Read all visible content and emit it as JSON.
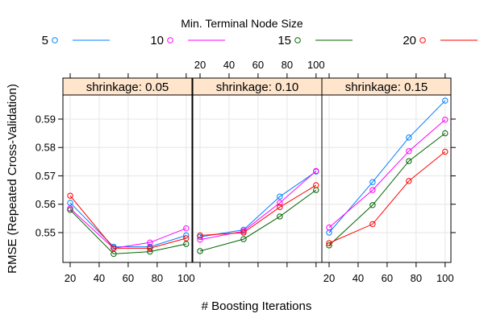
{
  "chart_data": {
    "type": "line",
    "layout": "lattice-panels-row",
    "legend": {
      "title": "Min. Terminal Node Size",
      "placement": "top",
      "entries": [
        {
          "label": "5",
          "color": "#0080ff"
        },
        {
          "label": "10",
          "color": "#ff00ff"
        },
        {
          "label": "15",
          "color": "#006400"
        },
        {
          "label": "20",
          "color": "#ff0000"
        }
      ]
    },
    "xlabel": "# Boosting Iterations",
    "ylabel": "RMSE (Repeated Cross-Validation)",
    "xlim": [
      15,
      104
    ],
    "ylim": [
      0.5395,
      0.5985
    ],
    "x_ticks": [
      20,
      40,
      60,
      80,
      100
    ],
    "x_tick_labels": [
      "20",
      "40",
      "60",
      "80",
      "100"
    ],
    "y_ticks": [
      0.55,
      0.56,
      0.57,
      0.58,
      0.59
    ],
    "y_tick_labels": [
      "0.55",
      "0.56",
      "0.57",
      "0.58",
      "0.59"
    ],
    "grid": true,
    "x": [
      20,
      50,
      75,
      100
    ],
    "panels": [
      {
        "strip": "shrinkage: 0.05",
        "series": [
          {
            "values": [
              0.5605,
              0.545,
              0.545,
              0.549
            ]
          },
          {
            "values": [
              0.5585,
              0.5445,
              0.5465,
              0.5515
            ]
          },
          {
            "values": [
              0.558,
              0.5425,
              0.5433,
              0.546
            ]
          },
          {
            "values": [
              0.563,
              0.5445,
              0.5445,
              0.548
            ]
          }
        ]
      },
      {
        "strip": "shrinkage: 0.10",
        "series": [
          {
            "values": [
              0.5485,
              0.551,
              0.5627,
              0.5715
            ]
          },
          {
            "values": [
              0.5475,
              0.5505,
              0.5605,
              0.5717
            ]
          },
          {
            "values": [
              0.5435,
              0.5477,
              0.5557,
              0.565
            ]
          },
          {
            "values": [
              0.549,
              0.55,
              0.559,
              0.5667
            ]
          }
        ]
      },
      {
        "strip": "shrinkage: 0.15",
        "series": [
          {
            "values": [
              0.55,
              0.5678,
              0.5835,
              0.5965
            ]
          },
          {
            "values": [
              0.5518,
              0.565,
              0.5787,
              0.5898
            ]
          },
          {
            "values": [
              0.5455,
              0.5597,
              0.5752,
              0.585
            ]
          },
          {
            "values": [
              0.5463,
              0.553,
              0.5682,
              0.5785
            ]
          }
        ]
      }
    ]
  }
}
